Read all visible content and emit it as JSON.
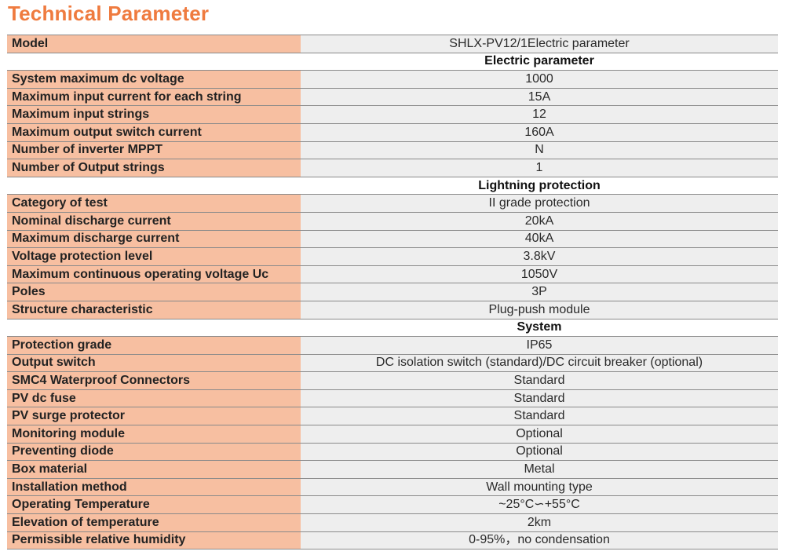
{
  "title": "Technical Parameter",
  "model": {
    "label": "Model",
    "value": "SHLX-PV12/1Electric parameter"
  },
  "sections": [
    {
      "heading": "Electric parameter",
      "rows": [
        {
          "label": "System maximum dc voltage",
          "value": "1000"
        },
        {
          "label": "Maximum input current for each string",
          "value": "15A"
        },
        {
          "label": "Maximum input strings",
          "value": "12"
        },
        {
          "label": "Maximum output switch current",
          "value": "160A"
        },
        {
          "label": "Number of inverter MPPT",
          "value": "N"
        },
        {
          "label": "Number of Output strings",
          "value": "1"
        }
      ]
    },
    {
      "heading": "Lightning protection",
      "rows": [
        {
          "label": "Category of test",
          "value": "II grade protection"
        },
        {
          "label": "Nominal discharge current",
          "value": "20kA"
        },
        {
          "label": "Maximum discharge current",
          "value": "40kA"
        },
        {
          "label": "Voltage protection level",
          "value": "3.8kV"
        },
        {
          "label": "Maximum continuous operating voltage Uc",
          "value": "1050V"
        },
        {
          "label": "Poles",
          "value": "3P"
        },
        {
          "label": "Structure characteristic",
          "value": "Plug-push module"
        }
      ]
    },
    {
      "heading": "System",
      "rows": [
        {
          "label": "Protection grade",
          "value": "IP65"
        },
        {
          "label": "Output switch",
          "value": "DC isolation switch (standard)/DC circuit breaker (optional)"
        },
        {
          "label": "SMC4 Waterproof Connectors",
          "value": "Standard"
        },
        {
          "label": "PV dc fuse",
          "value": "Standard"
        },
        {
          "label": "PV surge protector",
          "value": "Standard"
        },
        {
          "label": "Monitoring module",
          "value": "Optional"
        },
        {
          "label": "Preventing diode",
          "value": "Optional"
        },
        {
          "label": "Box material",
          "value": "Metal"
        },
        {
          "label": "Installation method",
          "value": "Wall mounting type"
        },
        {
          "label": "Operating Temperature",
          "value": "~25°C∽+55°C"
        },
        {
          "label": "Elevation of temperature",
          "value": "2km"
        },
        {
          "label": "Permissible relative humidity",
          "value": "0-95%，no condensation"
        }
      ]
    }
  ],
  "colors": {
    "title": "#ef7b3f",
    "label_bg": "#f7bfa1",
    "value_bg": "#eeeeee",
    "section_bg": "#ffffff"
  }
}
